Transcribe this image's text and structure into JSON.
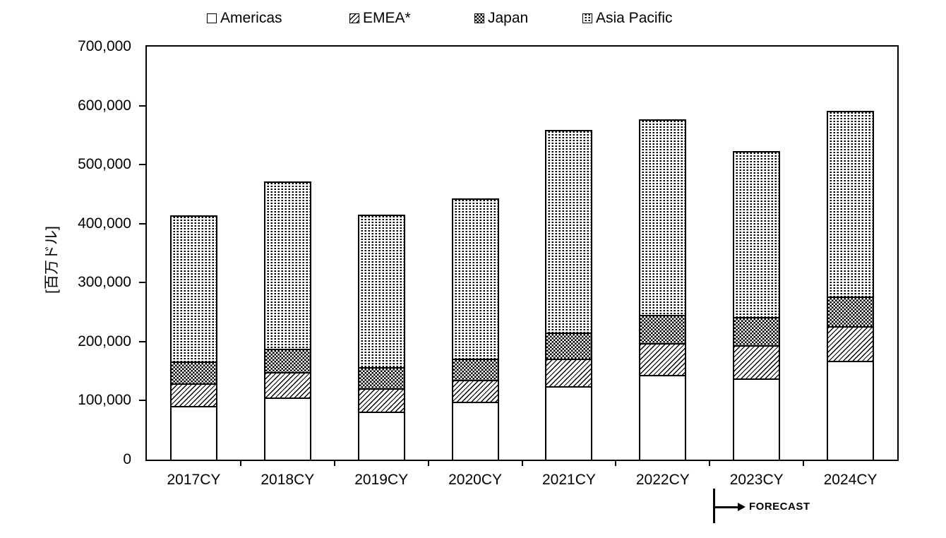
{
  "chart_data": {
    "type": "bar",
    "stacked": true,
    "title": "",
    "unit_label": "[百万ドル]",
    "categories": [
      "2017CY",
      "2018CY",
      "2019CY",
      "2020CY",
      "2021CY",
      "2022CY",
      "2023CY",
      "2024CY"
    ],
    "series": [
      {
        "name": "Americas",
        "pattern": "plain",
        "values": [
          88498,
          102997,
          78619,
          95366,
          121481,
          141136,
          134864,
          164939
        ]
      },
      {
        "name": "EMEA*",
        "pattern": "diagonal-hatch",
        "values": [
          38345,
          42957,
          39767,
          37520,
          47757,
          53853,
          57062,
          59402
        ]
      },
      {
        "name": "Japan",
        "pattern": "checkerboard",
        "values": [
          36593,
          39961,
          35990,
          36471,
          43687,
          48158,
          47191,
          49267
        ]
      },
      {
        "name": "Asia Pacific",
        "pattern": "dotted-vertical",
        "values": [
          248785,
          282863,
          257931,
          271032,
          342968,
          330937,
          281009,
          314756
        ]
      }
    ],
    "totals": [
      412221,
      468778,
      412307,
      440389,
      555893,
      574084,
      520126,
      588364
    ],
    "ylim": [
      0,
      700000
    ],
    "ytick_step": 100000,
    "ytick_labels": [
      "0",
      "100,000",
      "200,000",
      "300,000",
      "400,000",
      "500,000",
      "600,000",
      "700,000"
    ],
    "grid": false,
    "legend_position": "top",
    "legend_items": [
      "Americas",
      "EMEA*",
      "Japan",
      "Asia Pacific"
    ],
    "annotations": {
      "forecast_label": "FORECAST",
      "forecast_starts_at": "2023CY"
    },
    "colors": {
      "foreground": "#000000",
      "background": "#ffffff"
    }
  }
}
